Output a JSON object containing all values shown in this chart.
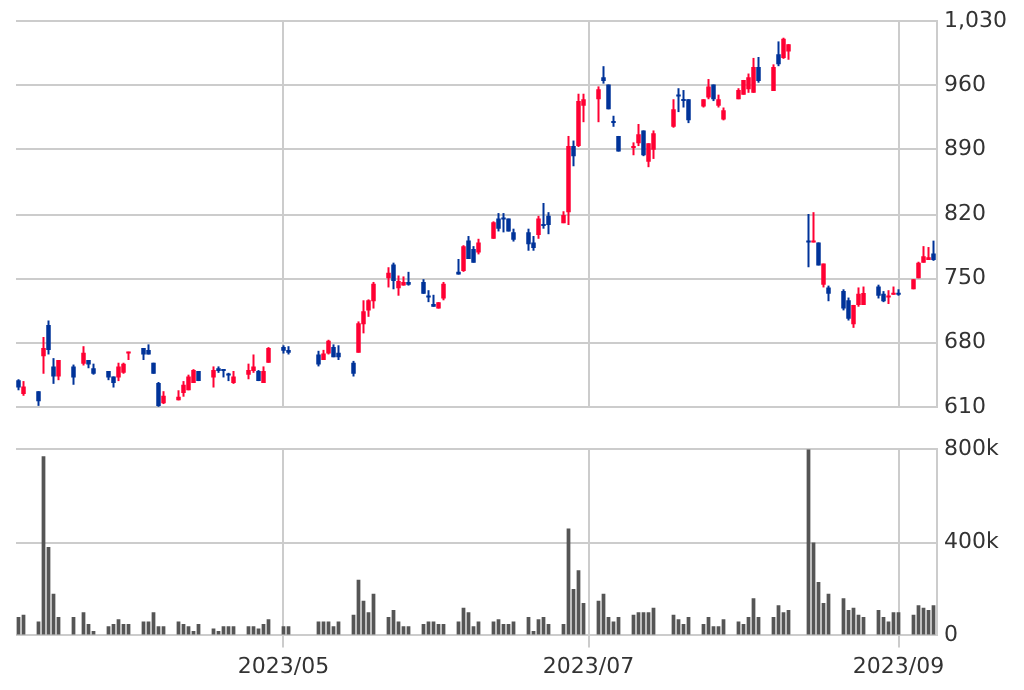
{
  "chart_data": [
    {
      "type": "candlestick",
      "x": [
        "2023-03-09",
        "2023-03-10",
        "2023-03-13",
        "2023-03-14",
        "2023-03-15",
        "2023-03-16",
        "2023-03-17",
        "2023-03-20",
        "2023-03-22",
        "2023-03-23",
        "2023-03-24",
        "2023-03-27",
        "2023-03-28",
        "2023-03-29",
        "2023-03-30",
        "2023-03-31",
        "2023-04-03",
        "2023-04-04",
        "2023-04-05",
        "2023-04-06",
        "2023-04-07",
        "2023-04-10",
        "2023-04-11",
        "2023-04-12",
        "2023-04-13",
        "2023-04-14",
        "2023-04-17",
        "2023-04-18",
        "2023-04-19",
        "2023-04-20",
        "2023-04-21",
        "2023-04-24",
        "2023-04-25",
        "2023-04-26",
        "2023-04-27",
        "2023-04-28",
        "2023-05-01",
        "2023-05-02",
        "2023-05-08",
        "2023-05-09",
        "2023-05-10",
        "2023-05-11",
        "2023-05-12",
        "2023-05-15",
        "2023-05-16",
        "2023-05-17",
        "2023-05-18",
        "2023-05-19",
        "2023-05-22",
        "2023-05-23",
        "2023-05-24",
        "2023-05-25",
        "2023-05-26",
        "2023-05-29",
        "2023-05-30",
        "2023-05-31",
        "2023-06-01",
        "2023-06-02",
        "2023-06-05",
        "2023-06-06",
        "2023-06-07",
        "2023-06-08",
        "2023-06-09",
        "2023-06-12",
        "2023-06-13",
        "2023-06-14",
        "2023-06-15",
        "2023-06-16",
        "2023-06-19",
        "2023-06-20",
        "2023-06-21",
        "2023-06-22",
        "2023-06-23",
        "2023-06-26",
        "2023-06-27",
        "2023-06-28",
        "2023-06-29",
        "2023-06-30",
        "2023-07-03",
        "2023-07-04",
        "2023-07-05",
        "2023-07-06",
        "2023-07-07",
        "2023-07-10",
        "2023-07-11",
        "2023-07-12",
        "2023-07-13",
        "2023-07-14",
        "2023-07-18",
        "2023-07-19",
        "2023-07-20",
        "2023-07-21",
        "2023-07-24",
        "2023-07-25",
        "2023-07-26",
        "2023-07-27",
        "2023-07-28",
        "2023-07-31",
        "2023-08-01",
        "2023-08-02",
        "2023-08-03",
        "2023-08-04",
        "2023-08-07",
        "2023-08-08",
        "2023-08-09",
        "2023-08-10",
        "2023-08-14",
        "2023-08-15",
        "2023-08-16",
        "2023-08-17",
        "2023-08-18",
        "2023-08-21",
        "2023-08-22",
        "2023-08-23",
        "2023-08-24",
        "2023-08-25",
        "2023-08-28",
        "2023-08-29",
        "2023-08-30",
        "2023-08-31",
        "2023-09-01",
        "2023-09-04",
        "2023-09-05",
        "2023-09-06",
        "2023-09-07",
        "2023-09-08"
      ],
      "ohlc": [
        [
          639,
          640,
          628,
          631
        ],
        [
          624,
          638,
          622,
          632
        ],
        [
          627,
          627,
          611,
          616
        ],
        [
          665,
          686,
          646,
          674
        ],
        [
          699,
          704,
          667,
          672
        ],
        [
          654,
          663,
          635,
          643
        ],
        [
          643,
          661,
          639,
          661
        ],
        [
          654,
          656,
          634,
          642
        ],
        [
          657,
          676,
          655,
          669
        ],
        [
          661,
          661,
          652,
          656
        ],
        [
          652,
          657,
          645,
          646
        ],
        [
          649,
          649,
          639,
          642
        ],
        [
          643,
          643,
          631,
          636
        ],
        [
          642,
          658,
          638,
          654
        ],
        [
          647,
          658,
          646,
          657
        ],
        [
          668,
          670,
          661,
          670
        ],
        [
          674,
          674,
          661,
          667
        ],
        [
          672,
          678,
          667,
          667
        ],
        [
          658,
          658,
          646,
          646
        ],
        [
          636,
          637,
          610,
          611
        ],
        [
          614,
          627,
          613,
          622
        ],
        [
          617,
          628,
          617,
          621
        ],
        [
          625,
          638,
          621,
          634
        ],
        [
          628,
          645,
          628,
          643
        ],
        [
          636,
          651,
          636,
          650
        ],
        [
          649,
          649,
          638,
          638
        ],
        [
          642,
          654,
          631,
          650
        ],
        [
          652,
          654,
          647,
          649
        ],
        [
          651,
          651,
          642,
          649
        ],
        [
          645,
          647,
          638,
          644
        ],
        [
          636,
          649,
          635,
          643
        ],
        [
          645,
          657,
          640,
          650
        ],
        [
          649,
          667,
          647,
          654
        ],
        [
          649,
          650,
          638,
          638
        ],
        [
          636,
          654,
          636,
          649
        ],
        [
          658,
          675,
          658,
          674
        ],
        [
          675,
          677,
          668,
          671
        ],
        [
          672,
          676,
          667,
          669
        ],
        [
          667,
          671,
          654,
          656
        ],
        [
          661,
          672,
          661,
          668
        ],
        [
          668,
          683,
          667,
          682
        ],
        [
          675,
          678,
          664,
          664
        ],
        [
          669,
          677,
          661,
          664
        ],
        [
          658,
          660,
          643,
          646
        ],
        [
          669,
          703,
          669,
          701
        ],
        [
          700,
          726,
          690,
          714
        ],
        [
          715,
          727,
          708,
          726
        ],
        [
          725,
          746,
          717,
          744
        ],
        [
          750,
          762,
          740,
          756
        ],
        [
          765,
          767,
          738,
          747
        ],
        [
          739,
          753,
          731,
          747
        ],
        [
          742,
          752,
          742,
          746
        ],
        [
          746,
          757,
          742,
          743
        ],
        [
          746,
          749,
          733,
          733
        ],
        [
          731,
          737,
          724,
          729
        ],
        [
          722,
          732,
          719,
          719
        ],
        [
          717,
          724,
          717,
          724
        ],
        [
          728,
          746,
          726,
          744
        ],
        [
          757,
          771,
          754,
          754
        ],
        [
          758,
          786,
          757,
          785
        ],
        [
          791,
          796,
          771,
          771
        ],
        [
          782,
          785,
          767,
          767
        ],
        [
          778,
          793,
          776,
          789
        ],
        [
          793,
          812,
          793,
          811
        ],
        [
          815,
          821,
          801,
          804
        ],
        [
          815,
          821,
          800,
          814
        ],
        [
          815,
          815,
          801,
          801
        ],
        [
          800,
          804,
          790,
          792
        ],
        [
          800,
          804,
          780,
          787
        ],
        [
          789,
          796,
          780,
          783
        ],
        [
          797,
          818,
          793,
          815
        ],
        [
          809,
          832,
          804,
          807
        ],
        [
          818,
          822,
          798,
          808
        ],
        [
          810,
          823,
          810,
          819
        ],
        [
          822,
          905,
          808,
          894
        ],
        [
          894,
          900,
          872,
          883
        ],
        [
          894,
          951,
          893,
          943
        ],
        [
          938,
          951,
          920,
          945
        ],
        [
          945,
          959,
          920,
          956
        ],
        [
          969,
          981,
          962,
          965
        ],
        [
          961,
          961,
          934,
          934
        ],
        [
          920,
          927,
          915,
          919
        ],
        [
          905,
          905,
          888,
          888
        ],
        [
          892,
          898,
          884,
          894
        ],
        [
          897,
          918,
          894,
          907
        ],
        [
          911,
          911,
          883,
          884
        ],
        [
          877,
          897,
          871,
          897
        ],
        [
          890,
          911,
          880,
          908
        ],
        [
          915,
          945,
          914,
          934
        ],
        [
          950,
          957,
          931,
          948
        ],
        [
          945,
          955,
          936,
          943
        ],
        [
          945,
          945,
          919,
          922
        ],
        [
          937,
          945,
          936,
          945
        ],
        [
          947,
          967,
          945,
          959
        ],
        [
          961,
          961,
          943,
          945
        ],
        [
          938,
          950,
          936,
          945
        ],
        [
          923,
          936,
          922,
          933
        ],
        [
          945,
          957,
          945,
          955
        ],
        [
          950,
          966,
          950,
          966
        ],
        [
          956,
          973,
          952,
          969
        ],
        [
          952,
          990,
          952,
          980
        ],
        [
          980,
          991,
          963,
          965
        ],
        [
          954,
          983,
          954,
          980
        ],
        [
          994,
          1008,
          981,
          983
        ],
        [
          990,
          1012,
          989,
          1011
        ],
        [
          997,
          1005,
          988,
          1005
        ],
        [
          791,
          820,
          762,
          789
        ],
        [
          789,
          822,
          789,
          791
        ],
        [
          789,
          789,
          764,
          764
        ],
        [
          743,
          766,
          740,
          766
        ],
        [
          740,
          742,
          725,
          733
        ],
        [
          736,
          738,
          715,
          717
        ],
        [
          726,
          729,
          704,
          706
        ],
        [
          700,
          721,
          696,
          721
        ],
        [
          721,
          740,
          719,
          733
        ],
        [
          721,
          741,
          721,
          734
        ],
        [
          741,
          743,
          728,
          731
        ],
        [
          733,
          736,
          724,
          725
        ],
        [
          729,
          737,
          722,
          731
        ],
        [
          732,
          741,
          732,
          734
        ],
        [
          734,
          738,
          731,
          732
        ],
        [
          738,
          749,
          738,
          749
        ],
        [
          750,
          768,
          750,
          767
        ],
        [
          767,
          785,
          767,
          774
        ],
        [
          770,
          784,
          770,
          773
        ],
        [
          777,
          791,
          769,
          770
        ]
      ],
      "colors": [
        "#003399",
        "#ff0033",
        "#003399",
        "#ff0033",
        "#003399",
        "#003399",
        "#ff0033",
        "#003399",
        "#ff0033",
        "#003399",
        "#003399",
        "#003399",
        "#003399",
        "#ff0033",
        "#ff0033",
        "#ff0033",
        "#003399",
        "#003399",
        "#003399",
        "#003399",
        "#ff0033",
        "#ff0033",
        "#ff0033",
        "#ff0033",
        "#ff0033",
        "#003399",
        "#ff0033",
        "#003399",
        "#003399",
        "#003399",
        "#ff0033",
        "#ff0033",
        "#ff0033",
        "#003399",
        "#ff0033",
        "#ff0033",
        "#003399",
        "#003399",
        "#003399",
        "#ff0033",
        "#ff0033",
        "#003399",
        "#003399",
        "#003399",
        "#ff0033",
        "#ff0033",
        "#ff0033",
        "#ff0033",
        "#ff0033",
        "#003399",
        "#ff0033",
        "#ff0033",
        "#003399",
        "#003399",
        "#003399",
        "#003399",
        "#ff0033",
        "#ff0033",
        "#003399",
        "#ff0033",
        "#003399",
        "#003399",
        "#ff0033",
        "#ff0033",
        "#003399",
        "#003399",
        "#003399",
        "#003399",
        "#003399",
        "#003399",
        "#ff0033",
        "#003399",
        "#003399",
        "#ff0033",
        "#ff0033",
        "#003399",
        "#ff0033",
        "#ff0033",
        "#ff0033",
        "#003399",
        "#003399",
        "#003399",
        "#003399",
        "#ff0033",
        "#ff0033",
        "#003399",
        "#ff0033",
        "#ff0033",
        "#ff0033",
        "#003399",
        "#003399",
        "#003399",
        "#ff0033",
        "#ff0033",
        "#003399",
        "#ff0033",
        "#ff0033",
        "#ff0033",
        "#ff0033",
        "#ff0033",
        "#ff0033",
        "#003399",
        "#ff0033",
        "#003399",
        "#ff0033",
        "#ff0033",
        "#003399",
        "#ff0033",
        "#003399",
        "#ff0033",
        "#003399",
        "#003399",
        "#003399",
        "#ff0033",
        "#ff0033",
        "#ff0033",
        "#003399",
        "#003399",
        "#ff0033",
        "#ff0033",
        "#003399",
        "#ff0033",
        "#ff0033",
        "#ff0033",
        "#ff0033",
        "#003399"
      ],
      "xlim": [
        "2023-03-09",
        "2023-09-08"
      ],
      "xticks": [
        {
          "value": "2023-05",
          "label": null
        },
        {
          "value": "2023-07",
          "label": null
        },
        {
          "value": "2023-09",
          "label": null
        }
      ],
      "ylim": [
        610,
        1030
      ],
      "yticks": [
        610,
        680,
        750,
        820,
        890,
        960,
        {
          "value": 1030,
          "label": "1,030"
        }
      ],
      "grid": true,
      "tick_labels": "y"
    },
    {
      "type": "bar",
      "x": [
        "2023-03-09",
        "2023-03-10",
        "2023-03-13",
        "2023-03-14",
        "2023-03-15",
        "2023-03-16",
        "2023-03-17",
        "2023-03-20",
        "2023-03-22",
        "2023-03-23",
        "2023-03-24",
        "2023-03-27",
        "2023-03-28",
        "2023-03-29",
        "2023-03-30",
        "2023-03-31",
        "2023-04-03",
        "2023-04-04",
        "2023-04-05",
        "2023-04-06",
        "2023-04-07",
        "2023-04-10",
        "2023-04-11",
        "2023-04-12",
        "2023-04-13",
        "2023-04-14",
        "2023-04-17",
        "2023-04-18",
        "2023-04-19",
        "2023-04-20",
        "2023-04-21",
        "2023-04-24",
        "2023-04-25",
        "2023-04-26",
        "2023-04-27",
        "2023-04-28",
        "2023-05-01",
        "2023-05-02",
        "2023-05-08",
        "2023-05-09",
        "2023-05-10",
        "2023-05-11",
        "2023-05-12",
        "2023-05-15",
        "2023-05-16",
        "2023-05-17",
        "2023-05-18",
        "2023-05-19",
        "2023-05-22",
        "2023-05-23",
        "2023-05-24",
        "2023-05-25",
        "2023-05-26",
        "2023-05-29",
        "2023-05-30",
        "2023-05-31",
        "2023-06-01",
        "2023-06-02",
        "2023-06-05",
        "2023-06-06",
        "2023-06-07",
        "2023-06-08",
        "2023-06-09",
        "2023-06-12",
        "2023-06-13",
        "2023-06-14",
        "2023-06-15",
        "2023-06-16",
        "2023-06-19",
        "2023-06-20",
        "2023-06-21",
        "2023-06-22",
        "2023-06-23",
        "2023-06-26",
        "2023-06-27",
        "2023-06-28",
        "2023-06-29",
        "2023-06-30",
        "2023-07-03",
        "2023-07-04",
        "2023-07-05",
        "2023-07-06",
        "2023-07-07",
        "2023-07-10",
        "2023-07-11",
        "2023-07-12",
        "2023-07-13",
        "2023-07-14",
        "2023-07-18",
        "2023-07-19",
        "2023-07-20",
        "2023-07-21",
        "2023-07-24",
        "2023-07-25",
        "2023-07-26",
        "2023-07-27",
        "2023-07-28",
        "2023-07-31",
        "2023-08-01",
        "2023-08-02",
        "2023-08-03",
        "2023-08-04",
        "2023-08-07",
        "2023-08-08",
        "2023-08-09",
        "2023-08-10",
        "2023-08-14",
        "2023-08-15",
        "2023-08-16",
        "2023-08-17",
        "2023-08-18",
        "2023-08-21",
        "2023-08-22",
        "2023-08-23",
        "2023-08-24",
        "2023-08-25",
        "2023-08-28",
        "2023-08-29",
        "2023-08-30",
        "2023-08-31",
        "2023-09-01",
        "2023-09-04",
        "2023-09-05",
        "2023-09-06",
        "2023-09-07",
        "2023-09-08"
      ],
      "values": [
        80000,
        90000,
        60000,
        770000,
        380000,
        180000,
        80000,
        80000,
        100000,
        50000,
        20000,
        40000,
        50000,
        70000,
        50000,
        50000,
        60000,
        60000,
        100000,
        40000,
        40000,
        60000,
        50000,
        40000,
        20000,
        50000,
        30000,
        20000,
        40000,
        40000,
        40000,
        40000,
        40000,
        30000,
        50000,
        70000,
        40000,
        40000,
        60000,
        60000,
        60000,
        40000,
        60000,
        90000,
        240000,
        150000,
        100000,
        180000,
        80000,
        110000,
        60000,
        40000,
        40000,
        50000,
        60000,
        60000,
        50000,
        50000,
        60000,
        120000,
        100000,
        40000,
        60000,
        60000,
        70000,
        50000,
        50000,
        60000,
        80000,
        20000,
        70000,
        80000,
        50000,
        50000,
        460000,
        200000,
        280000,
        140000,
        150000,
        180000,
        80000,
        60000,
        80000,
        90000,
        100000,
        100000,
        100000,
        120000,
        90000,
        70000,
        50000,
        80000,
        50000,
        80000,
        40000,
        40000,
        70000,
        60000,
        50000,
        80000,
        160000,
        80000,
        80000,
        130000,
        100000,
        110000,
        800000,
        400000,
        230000,
        140000,
        180000,
        160000,
        110000,
        120000,
        90000,
        80000,
        110000,
        80000,
        60000,
        100000,
        100000,
        90000,
        130000,
        120000,
        110000,
        130000
      ],
      "color": "#555555",
      "xlim": [
        "2023-03-09",
        "2023-09-08"
      ],
      "xticks": [
        {
          "value": "2023-05",
          "label": "2023/05"
        },
        {
          "value": "2023-07",
          "label": "2023/07"
        },
        {
          "value": "2023-09",
          "label": "2023/09"
        }
      ],
      "ylim": [
        0,
        800000
      ],
      "yticks": [
        0,
        {
          "value": 400000,
          "label": "400k"
        },
        {
          "value": 800000,
          "label": "800k"
        }
      ],
      "grid": true
    }
  ]
}
